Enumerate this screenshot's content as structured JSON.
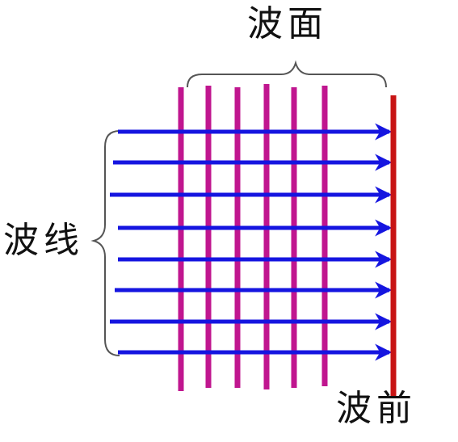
{
  "labels": {
    "wave_surface": "波面",
    "wave_line": "波线",
    "wavefront": "波前"
  },
  "colors": {
    "wave_surface_lines": "#c0168f",
    "wave_lines": "#1515e0",
    "wavefront_line": "#c81414",
    "brace": "#555555"
  },
  "counts": {
    "wave_surface_lines": 6,
    "wave_lines": 8
  }
}
